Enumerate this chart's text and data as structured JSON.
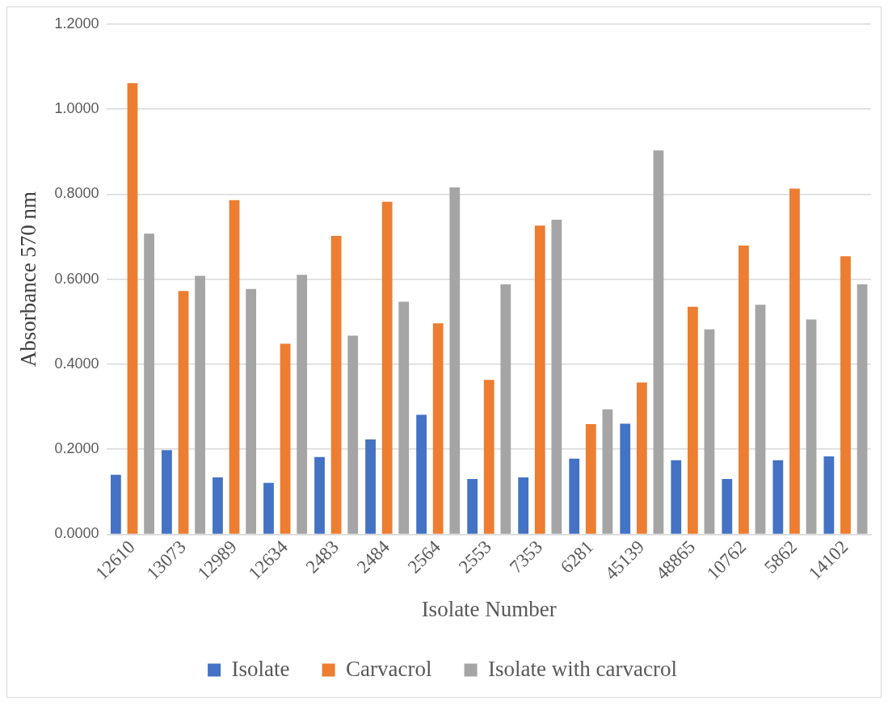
{
  "chart_data": {
    "type": "bar",
    "xlabel": "Isolate Number",
    "ylabel": "Absorbance 570 nm",
    "categories": [
      "12610",
      "13073",
      "12989",
      "12634",
      "2483",
      "2484",
      "2564",
      "2553",
      "7353",
      "6281",
      "45139",
      "48865",
      "10762",
      "5862",
      "14102"
    ],
    "series": [
      {
        "name": "Isolate",
        "color": "#4472c4",
        "values": [
          0.14,
          0.198,
          0.134,
          0.121,
          0.182,
          0.223,
          0.281,
          0.13,
          0.134,
          0.178,
          0.26,
          0.174,
          0.13,
          0.174,
          0.183
        ]
      },
      {
        "name": "Carvacrol",
        "color": "#ed7d31",
        "values": [
          1.061,
          0.572,
          0.786,
          0.448,
          0.702,
          0.782,
          0.496,
          0.363,
          0.726,
          0.259,
          0.357,
          0.535,
          0.679,
          0.813,
          0.654
        ]
      },
      {
        "name": "Isolate with carvacrol",
        "color": "#a5a5a5",
        "values": [
          0.707,
          0.608,
          0.577,
          0.61,
          0.467,
          0.547,
          0.816,
          0.588,
          0.74,
          0.294,
          0.903,
          0.482,
          0.54,
          0.505,
          0.588
        ]
      }
    ],
    "ylim": [
      0,
      1.2
    ],
    "yticks": [
      {
        "value": 0,
        "label": "0.0000"
      },
      {
        "value": 0.2,
        "label": "0.2000"
      },
      {
        "value": 0.4,
        "label": "0.4000"
      },
      {
        "value": 0.6,
        "label": "0.6000"
      },
      {
        "value": 0.8,
        "label": "0.8000"
      },
      {
        "value": 1.0,
        "label": "1.0000"
      },
      {
        "value": 1.2,
        "label": "1.2000"
      }
    ],
    "grid": "y",
    "legend": "bottom"
  }
}
